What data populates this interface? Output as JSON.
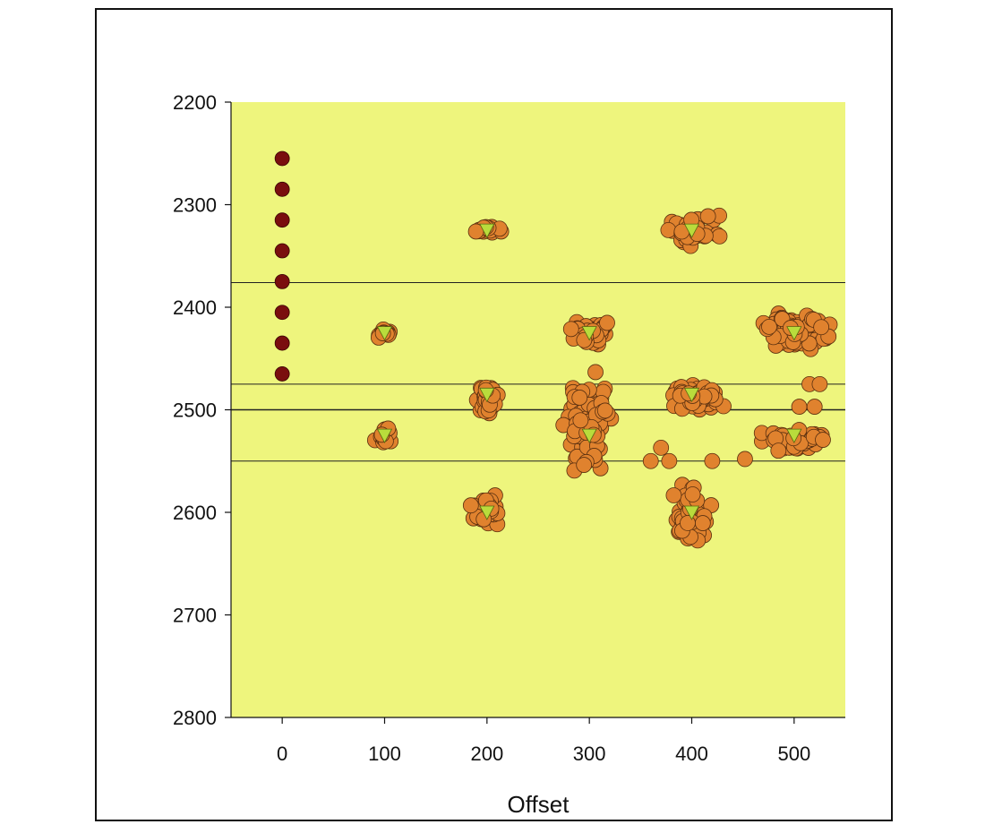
{
  "chart_data": {
    "type": "scatter",
    "title": "",
    "xlabel": "Offset",
    "ylabel": "",
    "xlim": [
      -50,
      550
    ],
    "ylim": [
      2800,
      2200
    ],
    "y_inverted": true,
    "x_ticks": [
      0,
      100,
      200,
      300,
      400,
      500
    ],
    "x_tick_labels": [
      "0",
      "100",
      "200",
      "300",
      "400",
      "500"
    ],
    "y_ticks": [
      2200,
      2300,
      2400,
      2500,
      2600,
      2700,
      2800
    ],
    "y_tick_labels": [
      "2200",
      "2300",
      "2400",
      "2500",
      "2600",
      "2700",
      "2800"
    ],
    "grid": false,
    "legend": "none",
    "horizontal_lines": [
      2376,
      2475,
      2500,
      2550
    ],
    "colors": {
      "plot_background": "#eef57d",
      "receiver_markers": "#7a0e0e",
      "event_markers": "#e0822e",
      "event_marker_edge": "#5a3010",
      "source_markers": "#b9dc3c",
      "lines": "#222222"
    },
    "series": [
      {
        "marker": "circle",
        "color": "#7a0e0e",
        "points": [
          [
            0,
            2255
          ],
          [
            0,
            2285
          ],
          [
            0,
            2315
          ],
          [
            0,
            2345
          ],
          [
            0,
            2375
          ],
          [
            0,
            2405
          ],
          [
            0,
            2435
          ],
          [
            0,
            2465
          ]
        ]
      },
      {
        "marker": "circle",
        "color": "#e0822e",
        "clusters": [
          {
            "center": [
              100,
              2425
            ],
            "spread": [
              8,
              4
            ],
            "count": 16
          },
          {
            "center": [
              100,
              2525
            ],
            "spread": [
              7,
              10
            ],
            "count": 18
          },
          {
            "center": [
              200,
              2325
            ],
            "spread": [
              12,
              3
            ],
            "count": 16
          },
          {
            "center": [
              200,
              2488
            ],
            "spread": [
              10,
              14
            ],
            "count": 30
          },
          {
            "center": [
              200,
              2600
            ],
            "spread": [
              12,
              13
            ],
            "count": 30
          },
          {
            "center": [
              300,
              2425
            ],
            "spread": [
              22,
              9
            ],
            "count": 45
          },
          {
            "center": [
              300,
              2510
            ],
            "spread": [
              20,
              38
            ],
            "count": 80
          },
          {
            "center": [
              400,
              2325
            ],
            "spread": [
              25,
              14
            ],
            "count": 45
          },
          {
            "center": [
              400,
              2487
            ],
            "spread": [
              25,
              12
            ],
            "count": 55
          },
          {
            "center": [
              400,
              2600
            ],
            "spread": [
              15,
              28
            ],
            "count": 60
          },
          {
            "center": [
              500,
              2425
            ],
            "spread": [
              30,
              16
            ],
            "count": 90
          },
          {
            "center": [
              500,
              2530
            ],
            "spread": [
              25,
              11
            ],
            "count": 40
          }
        ],
        "extra_points": [
          [
            452,
            2548
          ],
          [
            370,
            2537
          ],
          [
            378,
            2550
          ],
          [
            360,
            2550
          ],
          [
            420,
            2550
          ],
          [
            515,
            2475
          ],
          [
            525,
            2475
          ],
          [
            505,
            2497
          ],
          [
            520,
            2497
          ]
        ]
      },
      {
        "marker": "triangle-down",
        "color": "#b9dc3c",
        "points": [
          [
            100,
            2425
          ],
          [
            100,
            2525
          ],
          [
            200,
            2325
          ],
          [
            200,
            2485
          ],
          [
            200,
            2600
          ],
          [
            300,
            2425
          ],
          [
            300,
            2525
          ],
          [
            400,
            2325
          ],
          [
            400,
            2485
          ],
          [
            400,
            2600
          ],
          [
            500,
            2425
          ],
          [
            500,
            2525
          ]
        ]
      }
    ]
  }
}
